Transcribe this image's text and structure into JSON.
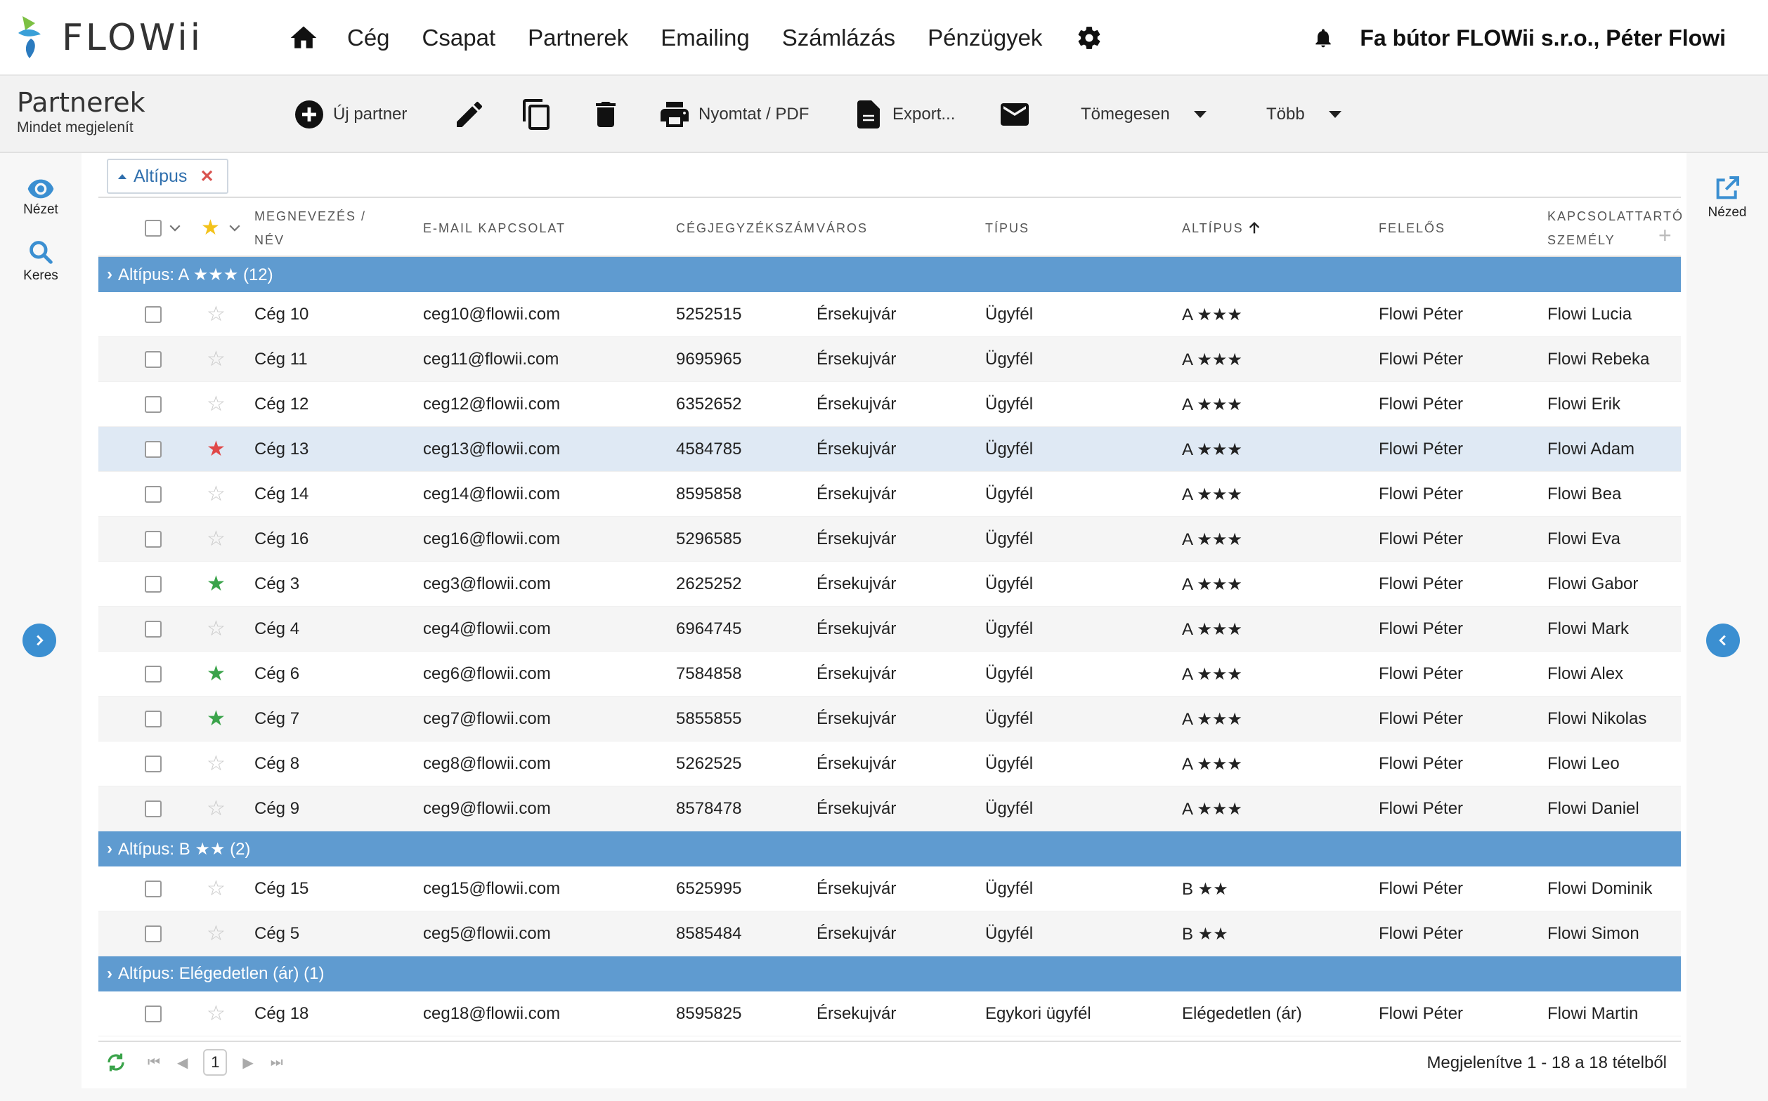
{
  "app": {
    "logo_text": "FLOWii",
    "user": "Fa bútor FLOWii s.r.o., Péter Flowi"
  },
  "nav": [
    "Cég",
    "Csapat",
    "Partnerek",
    "Emailing",
    "Számlázás",
    "Pénzügyek"
  ],
  "page": {
    "title": "Partnerek",
    "subtitle": "Mindet megjelenít"
  },
  "toolbar": {
    "new_partner": "Új partner",
    "print": "Nyomtat / PDF",
    "export": "Export...",
    "bulk": "Tömegesen",
    "more": "Több"
  },
  "left_rail": {
    "view": "Nézet",
    "search": "Keres"
  },
  "right_rail": {
    "view": "Nézed"
  },
  "filter_chip": "Altípus",
  "columns": {
    "name": "MEGNEVEZÉS /\nNÉV",
    "email": "E-MAIL KAPCSOLAT",
    "reg": "CÉGJEGYZÉKSZÁM",
    "city": "VÁROS",
    "type": "TÍPUS",
    "subtype": "ALTÍPUS",
    "owner": "FELELŐS",
    "contact": "KAPCSOLATTARTÓ\nSZEMÉLY"
  },
  "groups": [
    {
      "label": "Altípus: A ★★★ (12)",
      "rows": [
        {
          "star": "empty",
          "name": "Cég 10",
          "email": "ceg10@flowii.com",
          "reg": "5252515",
          "city": "Érsekujvár",
          "type": "Ügyfél",
          "subtype": "A ★★★",
          "owner": "Flowi Péter",
          "contact": "Flowi Lucia"
        },
        {
          "star": "empty",
          "name": "Cég 11",
          "email": "ceg11@flowii.com",
          "reg": "9695965",
          "city": "Érsekujvár",
          "type": "Ügyfél",
          "subtype": "A ★★★",
          "owner": "Flowi Péter",
          "contact": "Flowi Rebeka"
        },
        {
          "star": "empty",
          "name": "Cég 12",
          "email": "ceg12@flowii.com",
          "reg": "6352652",
          "city": "Érsekujvár",
          "type": "Ügyfél",
          "subtype": "A ★★★",
          "owner": "Flowi Péter",
          "contact": "Flowi Erik"
        },
        {
          "star": "red",
          "name": "Cég 13",
          "email": "ceg13@flowii.com",
          "reg": "4584785",
          "city": "Érsekujvár",
          "type": "Ügyfél",
          "subtype": "A ★★★",
          "owner": "Flowi Péter",
          "contact": "Flowi Adam",
          "selected": true
        },
        {
          "star": "empty",
          "name": "Cég 14",
          "email": "ceg14@flowii.com",
          "reg": "8595858",
          "city": "Érsekujvár",
          "type": "Ügyfél",
          "subtype": "A ★★★",
          "owner": "Flowi Péter",
          "contact": "Flowi Bea"
        },
        {
          "star": "empty",
          "name": "Cég 16",
          "email": "ceg16@flowii.com",
          "reg": "5296585",
          "city": "Érsekujvár",
          "type": "Ügyfél",
          "subtype": "A ★★★",
          "owner": "Flowi Péter",
          "contact": "Flowi Eva"
        },
        {
          "star": "green",
          "name": "Cég 3",
          "email": "ceg3@flowii.com",
          "reg": "2625252",
          "city": "Érsekujvár",
          "type": "Ügyfél",
          "subtype": "A ★★★",
          "owner": "Flowi Péter",
          "contact": "Flowi Gabor"
        },
        {
          "star": "empty",
          "name": "Cég 4",
          "email": "ceg4@flowii.com",
          "reg": "6964745",
          "city": "Érsekujvár",
          "type": "Ügyfél",
          "subtype": "A ★★★",
          "owner": "Flowi Péter",
          "contact": "Flowi Mark"
        },
        {
          "star": "green",
          "name": "Cég 6",
          "email": "ceg6@flowii.com",
          "reg": "7584858",
          "city": "Érsekujvár",
          "type": "Ügyfél",
          "subtype": "A ★★★",
          "owner": "Flowi Péter",
          "contact": "Flowi Alex"
        },
        {
          "star": "green",
          "name": "Cég 7",
          "email": "ceg7@flowii.com",
          "reg": "5855855",
          "city": "Érsekujvár",
          "type": "Ügyfél",
          "subtype": "A ★★★",
          "owner": "Flowi Péter",
          "contact": "Flowi Nikolas"
        },
        {
          "star": "empty",
          "name": "Cég 8",
          "email": "ceg8@flowii.com",
          "reg": "5262525",
          "city": "Érsekujvár",
          "type": "Ügyfél",
          "subtype": "A ★★★",
          "owner": "Flowi Péter",
          "contact": "Flowi Leo"
        },
        {
          "star": "empty",
          "name": "Cég 9",
          "email": "ceg9@flowii.com",
          "reg": "8578478",
          "city": "Érsekujvár",
          "type": "Ügyfél",
          "subtype": "A ★★★",
          "owner": "Flowi Péter",
          "contact": "Flowi Daniel"
        }
      ]
    },
    {
      "label": "Altípus: B ★★ (2)",
      "rows": [
        {
          "star": "empty",
          "name": "Cég 15",
          "email": "ceg15@flowii.com",
          "reg": "6525995",
          "city": "Érsekujvár",
          "type": "Ügyfél",
          "subtype": "B ★★",
          "owner": "Flowi Péter",
          "contact": "Flowi Dominik"
        },
        {
          "star": "empty",
          "name": "Cég 5",
          "email": "ceg5@flowii.com",
          "reg": "8585484",
          "city": "Érsekujvár",
          "type": "Ügyfél",
          "subtype": "B ★★",
          "owner": "Flowi Péter",
          "contact": "Flowi Simon"
        }
      ]
    },
    {
      "label": "Altípus: Elégedetlen (ár) (1)",
      "rows": [
        {
          "star": "empty",
          "name": "Cég 18",
          "email": "ceg18@flowii.com",
          "reg": "8595825",
          "city": "Érsekujvár",
          "type": "Egykori ügyfél",
          "subtype": "Elégedetlen (ár)",
          "owner": "Flowi Péter",
          "contact": "Flowi Martin"
        }
      ]
    }
  ],
  "pager": {
    "page": "1",
    "info": "Megjelenítve 1 - 18 a 18 tételből"
  }
}
